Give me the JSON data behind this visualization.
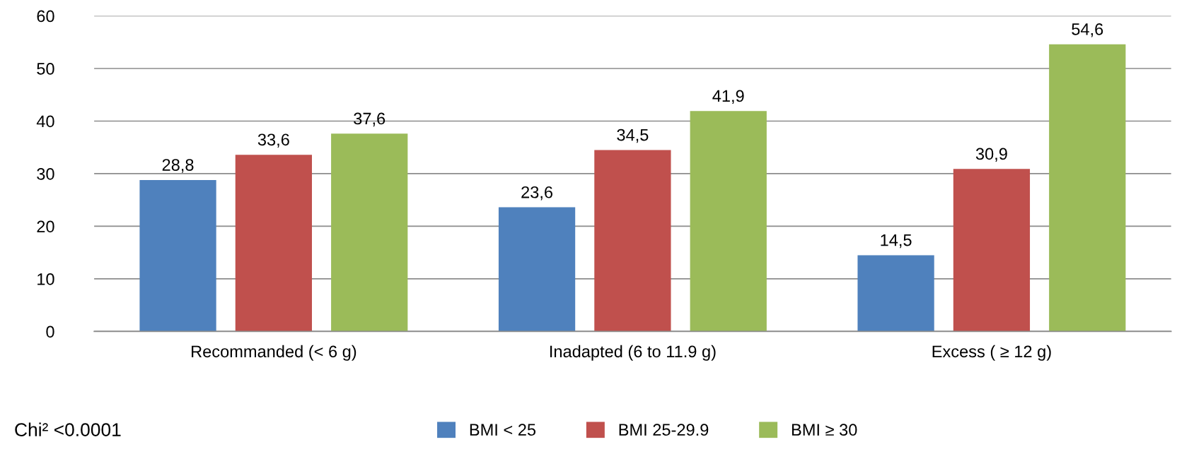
{
  "chart_data": {
    "type": "bar",
    "categories": [
      "Recommanded (< 6 g)",
      "Inadapted (6 to 11.9 g)",
      "Excess ( ≥ 12 g)"
    ],
    "series": [
      {
        "name": "BMI < 25",
        "color": "#4f81bd",
        "values": [
          28.8,
          23.6,
          14.5
        ],
        "value_labels": [
          "28,8",
          "23,6",
          "14,5"
        ]
      },
      {
        "name": "BMI 25-29.9",
        "color": "#c0504d",
        "values": [
          33.6,
          34.5,
          30.9
        ],
        "value_labels": [
          "33,6",
          "34,5",
          "30,9"
        ]
      },
      {
        "name": "BMI ≥ 30",
        "color": "#9bbb59",
        "values": [
          37.6,
          41.9,
          54.6
        ],
        "value_labels": [
          "37,6",
          "41,9",
          "54,6"
        ]
      }
    ],
    "ylim": [
      0,
      60
    ],
    "yticks": [
      0,
      10,
      20,
      30,
      40,
      50,
      60
    ],
    "grid": "y",
    "legend": "bottom",
    "annotations": [
      "Chi² <0.0001"
    ]
  }
}
